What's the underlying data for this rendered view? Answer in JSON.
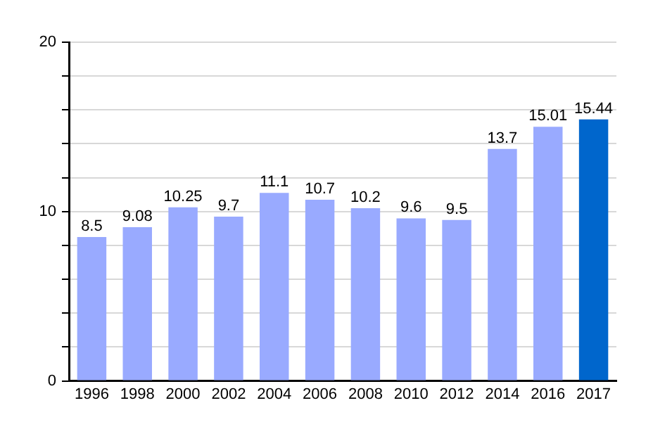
{
  "chart_data": {
    "type": "bar",
    "categories": [
      "1996",
      "1998",
      "2000",
      "2002",
      "2004",
      "2006",
      "2008",
      "2010",
      "2012",
      "2014",
      "2016",
      "2017"
    ],
    "values": [
      8.5,
      9.08,
      10.25,
      9.7,
      11.1,
      10.7,
      10.2,
      9.6,
      9.5,
      13.7,
      15.01,
      15.44
    ],
    "colors": [
      "#99aaff",
      "#99aaff",
      "#99aaff",
      "#99aaff",
      "#99aaff",
      "#99aaff",
      "#99aaff",
      "#99aaff",
      "#99aaff",
      "#99aaff",
      "#99aaff",
      "#0066cc"
    ],
    "ylim": [
      0,
      20
    ],
    "yticks": [
      0,
      {
        "value": 2,
        "label": null
      },
      {
        "value": 4,
        "label": null
      },
      {
        "value": 6,
        "label": null
      },
      {
        "value": 8,
        "label": null
      },
      10,
      {
        "value": 12,
        "label": null
      },
      {
        "value": 14,
        "label": null
      },
      {
        "value": 16,
        "label": null
      },
      {
        "value": 18,
        "label": null
      },
      20
    ],
    "grid": "y",
    "legend": false,
    "data_labels": true
  }
}
